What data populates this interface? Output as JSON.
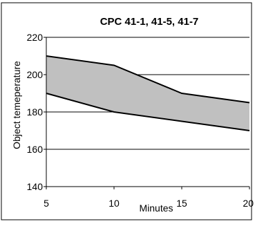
{
  "chart_data": {
    "type": "area",
    "title": "CPC 41-1, 41-5, 41-7",
    "xlabel": "Minutes",
    "ylabel": "Object temeperature",
    "xlim": [
      5,
      20
    ],
    "ylim": [
      140,
      220
    ],
    "x_ticks": [
      "5",
      "10",
      "15",
      "20"
    ],
    "y_ticks": [
      "140",
      "160",
      "180",
      "200",
      "220"
    ],
    "grid": "horizontal",
    "series": [
      {
        "x": [
          5,
          10,
          15,
          20
        ],
        "values": [
          210,
          205,
          190,
          185
        ]
      },
      {
        "x": [
          5,
          10,
          15,
          20
        ],
        "values": [
          190,
          180,
          175,
          170
        ]
      }
    ],
    "fill_color": "#c0c0c0",
    "line_color": "#000000"
  }
}
